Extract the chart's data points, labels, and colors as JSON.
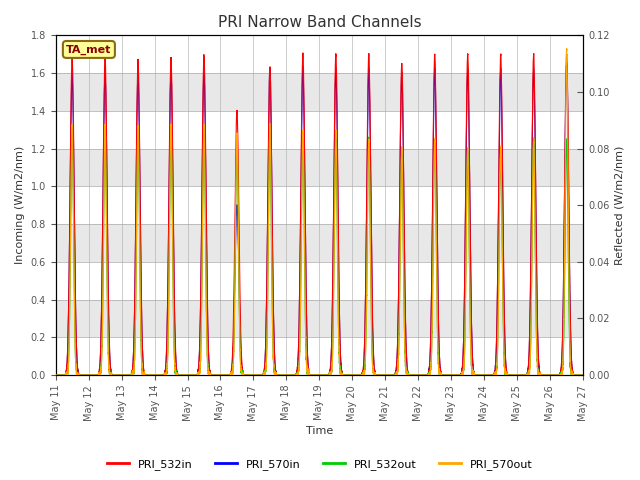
{
  "title": "PRI Narrow Band Channels",
  "xlabel": "Time",
  "ylabel_left": "Incoming (W/m2/nm)",
  "ylabel_right": "Reflected (W/m2/nm)",
  "ylim_left": [
    0.0,
    1.8
  ],
  "ylim_right": [
    0.0,
    0.12
  ],
  "annotation_text": "TA_met",
  "annotation_color": "#8B0000",
  "annotation_bg": "#FFFF99",
  "annotation_border": "#8B6914",
  "series": {
    "PRI_532in": {
      "color": "#FF0000",
      "lw": 0.8
    },
    "PRI_570in": {
      "color": "#0000FF",
      "lw": 0.8
    },
    "PRI_532out": {
      "color": "#00CC00",
      "lw": 0.8
    },
    "PRI_570out": {
      "color": "#FFA500",
      "lw": 0.8
    }
  },
  "n_days": 16,
  "start_day": 11,
  "background_band_colors": [
    "#FFFFFF",
    "#E8E8E8"
  ],
  "grid_color": "#CCCCCC",
  "tick_label_color": "#555555",
  "day_peaks_532in": [
    1.68,
    1.68,
    1.67,
    1.68,
    1.69,
    1.4,
    1.63,
    1.7,
    1.7,
    1.7,
    1.65,
    1.7,
    1.7,
    1.7,
    1.7,
    1.7
  ],
  "day_peaks_570in": [
    1.6,
    1.6,
    1.59,
    1.6,
    1.6,
    0.9,
    1.62,
    1.62,
    1.62,
    1.62,
    1.6,
    1.62,
    1.62,
    1.62,
    1.62,
    1.65
  ],
  "day_peaks_532out": [
    0.083,
    0.083,
    0.083,
    0.083,
    0.083,
    0.083,
    0.083,
    0.083,
    0.083,
    0.083,
    0.078,
    0.083,
    0.078,
    0.078,
    0.083,
    0.083
  ],
  "day_peaks_570out": [
    0.088,
    0.088,
    0.088,
    0.088,
    0.088,
    0.085,
    0.088,
    0.086,
    0.086,
    0.083,
    0.08,
    0.083,
    0.08,
    0.08,
    0.083,
    0.115
  ],
  "cloudy_days": [
    5
  ],
  "pts_per_day": 500
}
